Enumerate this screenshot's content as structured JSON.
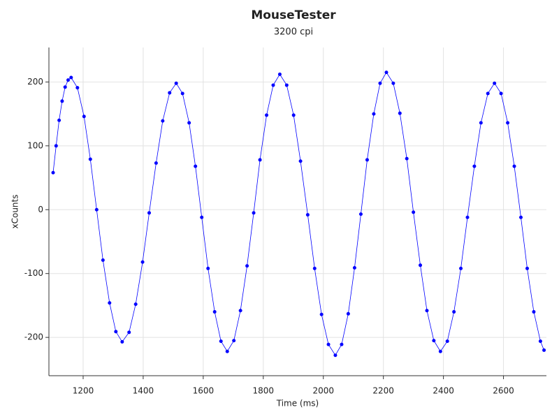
{
  "chart_data": {
    "type": "scatter",
    "title": "MouseTester",
    "subtitle": "3200 cpi",
    "x_label": "Time (ms)",
    "y_label": "xCounts",
    "color": "#0000ff",
    "line": true,
    "grid": true,
    "xlim": [
      1086,
      2743
    ],
    "ylim": [
      -260,
      254
    ],
    "xticks": [
      1200,
      1400,
      1600,
      1800,
      2000,
      2200,
      2400,
      2600
    ],
    "yticks": [
      -200,
      -100,
      0,
      100,
      200
    ],
    "x": [
      1100,
      1110,
      1120,
      1130,
      1140,
      1150,
      1160,
      1181,
      1203,
      1224,
      1245,
      1266,
      1288,
      1309,
      1330,
      1353,
      1375,
      1398,
      1420,
      1443,
      1465,
      1488,
      1510,
      1531,
      1553,
      1574,
      1595,
      1616,
      1638,
      1659,
      1680,
      1702,
      1724,
      1746,
      1768,
      1789,
      1811,
      1833,
      1855,
      1878,
      1901,
      1924,
      1948,
      1971,
      1994,
      2017,
      2040,
      2061,
      2083,
      2104,
      2125,
      2146,
      2168,
      2189,
      2210,
      2233,
      2255,
      2278,
      2300,
      2323,
      2345,
      2368,
      2390,
      2413,
      2435,
      2458,
      2480,
      2503,
      2525,
      2548,
      2570,
      2592,
      2614,
      2636,
      2658,
      2679,
      2701,
      2723,
      2735
    ],
    "values": [
      58,
      100,
      140,
      170,
      192,
      203,
      207,
      191,
      146,
      79,
      0,
      -79,
      -146,
      -191,
      -207,
      -192,
      -148,
      -82,
      -5,
      73,
      139,
      183,
      198,
      182,
      136,
      68,
      -12,
      -92,
      -160,
      -206,
      -222,
      -205,
      -158,
      -88,
      -5,
      78,
      148,
      195,
      212,
      195,
      148,
      76,
      -8,
      -92,
      -164,
      -211,
      -228,
      -211,
      -163,
      -91,
      -7,
      78,
      150,
      198,
      215,
      198,
      151,
      80,
      -4,
      -87,
      -158,
      -205,
      -222,
      -206,
      -160,
      -92,
      -12,
      68,
      136,
      182,
      198,
      182,
      136,
      68,
      -12,
      -92,
      -160,
      -206,
      -220
    ]
  }
}
